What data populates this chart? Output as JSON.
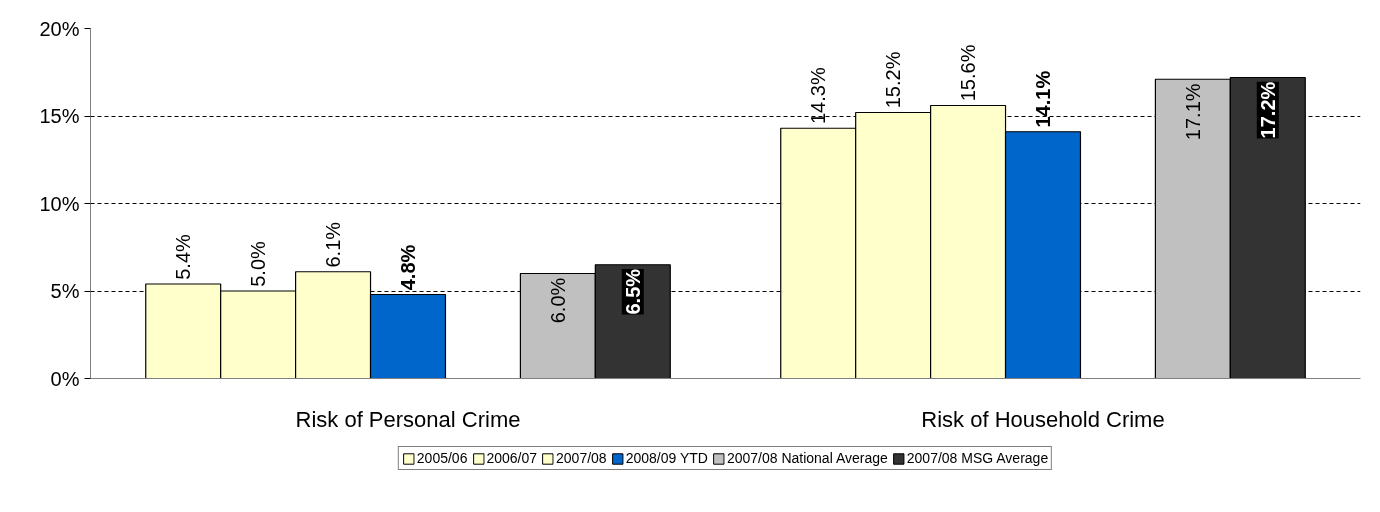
{
  "chart_data": {
    "type": "bar",
    "categories": [
      "Risk of Personal Crime",
      "Risk of Household Crime"
    ],
    "series": [
      {
        "name": "2005/06",
        "color": "#ffffcc",
        "values": [
          5.4,
          14.3
        ],
        "value_labels": [
          "5.4%",
          "14.3%"
        ]
      },
      {
        "name": "2006/07",
        "color": "#ffffcc",
        "values": [
          5.0,
          15.2
        ],
        "value_labels": [
          "5.0%",
          "15.2%"
        ]
      },
      {
        "name": "2007/08",
        "color": "#ffffcc",
        "values": [
          6.1,
          15.6
        ],
        "value_labels": [
          "6.1%",
          "15.6%"
        ]
      },
      {
        "name": "2008/09 YTD",
        "color": "#0066cc",
        "values": [
          4.8,
          14.1
        ],
        "value_labels": [
          "4.8%",
          "14.1%"
        ]
      },
      {
        "name": "2007/08 National Average",
        "color": "#c0c0c0",
        "values": [
          6.0,
          17.1
        ],
        "value_labels": [
          "6.0%",
          "17.1%"
        ]
      },
      {
        "name": "2007/08 MSG Average",
        "color": "#333333",
        "values": [
          6.5,
          17.2
        ],
        "value_labels": [
          "6.5%",
          "17.2%"
        ]
      }
    ],
    "ylim": [
      0,
      20
    ],
    "yticks": [
      {
        "value": 0,
        "label": "0%"
      },
      {
        "value": 5,
        "label": "5%"
      },
      {
        "value": 10,
        "label": "10%"
      },
      {
        "value": 15,
        "label": "15%"
      },
      {
        "value": 20,
        "label": "20%"
      }
    ],
    "grid": "y",
    "legend": "bottom"
  }
}
